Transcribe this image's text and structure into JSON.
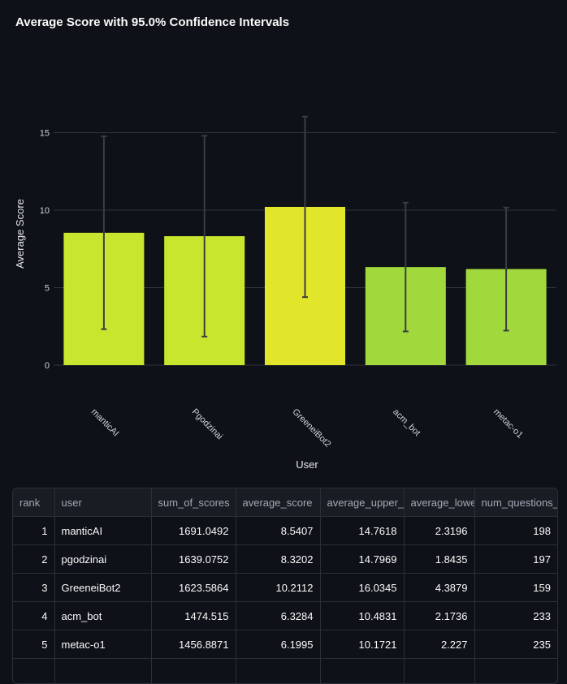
{
  "chart_data": {
    "type": "bar",
    "title": "Average Score with 95.0% Confidence Intervals",
    "xlabel": "User",
    "ylabel": "Average Score",
    "ylim": [
      0,
      16.5
    ],
    "yticks": [
      0,
      5,
      10,
      15
    ],
    "categories": [
      "manticAI",
      "Pgodzinai",
      "GreeneiBot2",
      "acm_bot",
      "metac-o1"
    ],
    "values": [
      8.5407,
      8.3202,
      10.2112,
      6.3284,
      6.1995
    ],
    "upper": [
      14.7618,
      14.7969,
      16.0345,
      10.4831,
      10.1721
    ],
    "lower": [
      2.3196,
      1.8435,
      4.3879,
      2.1736,
      2.227
    ],
    "grid": true,
    "colors": [
      "#c8e62d",
      "#c8e62d",
      "#e1e62a",
      "#a1d93c",
      "#a1d93c"
    ],
    "errorbar_color": "#3a3d44"
  },
  "table": {
    "columns": [
      "rank",
      "user",
      "sum_of_scores",
      "average_score",
      "average_upper_",
      "average_lowe",
      "num_questions_"
    ],
    "rows": [
      [
        "1",
        "manticAI",
        "1691.0492",
        "8.5407",
        "14.7618",
        "2.3196",
        "198"
      ],
      [
        "2",
        "pgodzinai",
        "1639.0752",
        "8.3202",
        "14.7969",
        "1.8435",
        "197"
      ],
      [
        "3",
        "GreeneiBot2",
        "1623.5864",
        "10.2112",
        "16.0345",
        "4.3879",
        "159"
      ],
      [
        "4",
        "acm_bot",
        "1474.515",
        "6.3284",
        "10.4831",
        "2.1736",
        "233"
      ],
      [
        "5",
        "metac-o1",
        "1456.8871",
        "6.1995",
        "10.1721",
        "2.227",
        "235"
      ],
      [
        "",
        "",
        "",
        "",
        "",
        "",
        ""
      ]
    ]
  }
}
